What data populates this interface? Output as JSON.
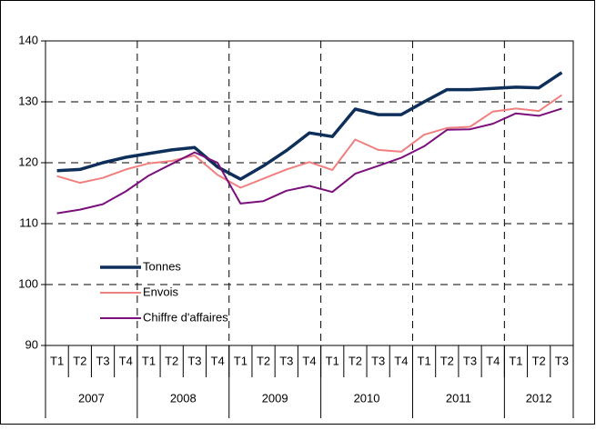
{
  "chart_data": {
    "type": "line",
    "categories": [
      "T1",
      "T2",
      "T3",
      "T4",
      "T1",
      "T2",
      "T3",
      "T4",
      "T1",
      "T2",
      "T3",
      "T4",
      "T1",
      "T2",
      "T3",
      "T4",
      "T1",
      "T2",
      "T3",
      "T4",
      "T1",
      "T2",
      "T3"
    ],
    "year_groups": [
      {
        "label": "2007",
        "span": 4
      },
      {
        "label": "2008",
        "span": 4
      },
      {
        "label": "2009",
        "span": 4
      },
      {
        "label": "2010",
        "span": 4
      },
      {
        "label": "2011",
        "span": 4
      },
      {
        "label": "2012",
        "span": 3
      }
    ],
    "series": [
      {
        "name": "Tonnes",
        "color": "#0e2f5a",
        "width": 3.5,
        "values": [
          118.7,
          118.9,
          120.0,
          120.9,
          121.5,
          122.1,
          122.5,
          119.3,
          117.3,
          119.5,
          122.0,
          124.9,
          124.3,
          128.8,
          127.9,
          127.9,
          130.0,
          132.0,
          132.0,
          132.2,
          132.4,
          132.3,
          134.8
        ]
      },
      {
        "name": "Envois",
        "color": "#f08080",
        "width": 2,
        "values": [
          117.8,
          116.7,
          117.5,
          118.9,
          119.9,
          120.3,
          121.2,
          118.0,
          115.9,
          117.4,
          118.9,
          120.1,
          118.8,
          123.8,
          122.1,
          121.8,
          124.6,
          125.7,
          125.9,
          128.4,
          128.9,
          128.5,
          131.1
        ]
      },
      {
        "name": "Chiffre d'affaires",
        "color": "#7b0f7b",
        "width": 2,
        "values": [
          111.7,
          112.3,
          113.2,
          115.3,
          117.9,
          119.8,
          121.7,
          120.0,
          113.3,
          113.7,
          115.4,
          116.2,
          115.2,
          118.2,
          119.5,
          120.8,
          122.7,
          125.4,
          125.5,
          126.4,
          128.1,
          127.7,
          128.9
        ]
      }
    ],
    "ylim": [
      90,
      140
    ],
    "yticks": [
      90,
      100,
      110,
      120,
      130,
      140
    ],
    "grid": true,
    "legend_position": "left"
  }
}
